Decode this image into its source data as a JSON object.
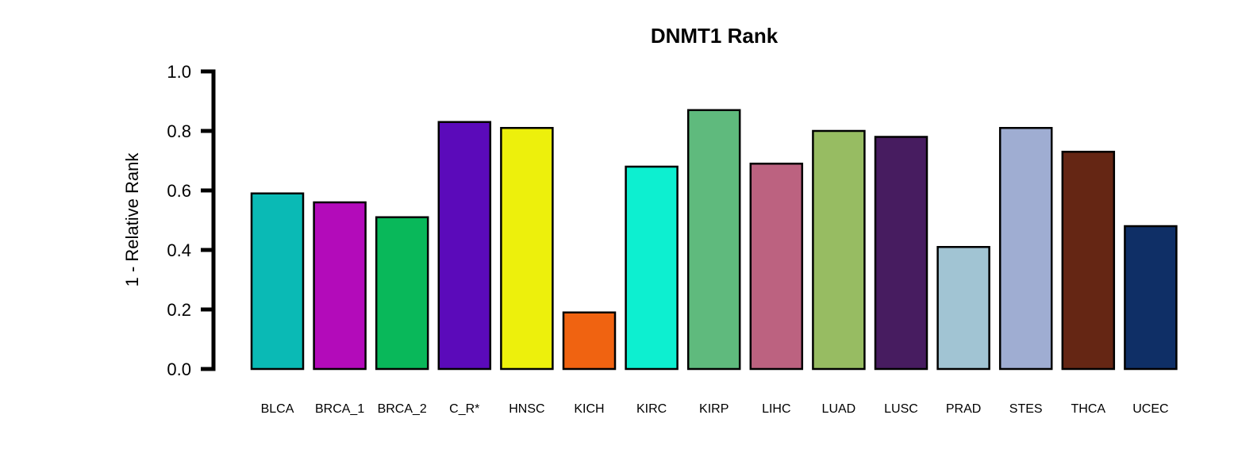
{
  "chart_data": {
    "type": "bar",
    "title": "DNMT1 Rank",
    "xlabel": "",
    "ylabel": "1 - Relative Rank",
    "ylim": [
      0,
      1
    ],
    "yticks": [
      "0.0",
      "0.2",
      "0.4",
      "0.6",
      "0.8",
      "1.0"
    ],
    "ytick_values": [
      0,
      0.2,
      0.4,
      0.6,
      0.8,
      1.0
    ],
    "grid": false,
    "categories": [
      "BLCA",
      "BRCA_1",
      "BRCA_2",
      "C_R*",
      "HNSC",
      "KICH",
      "KIRC",
      "KIRP",
      "LIHC",
      "LUAD",
      "LUSC",
      "PRAD",
      "STES",
      "THCA",
      "UCEC"
    ],
    "values": [
      0.59,
      0.56,
      0.51,
      0.83,
      0.81,
      0.19,
      0.68,
      0.87,
      0.69,
      0.8,
      0.78,
      0.41,
      0.81,
      0.73,
      0.48
    ],
    "colors": [
      "#0ABAB5",
      "#B30BBA",
      "#09B85A",
      "#5B0ABA",
      "#EDF00C",
      "#F06311",
      "#0DEFD0",
      "#5FBA7D",
      "#BC6280",
      "#97BC62",
      "#471C60",
      "#A1C4D3",
      "#9FADD2",
      "#652614",
      "#0F2F66"
    ]
  }
}
